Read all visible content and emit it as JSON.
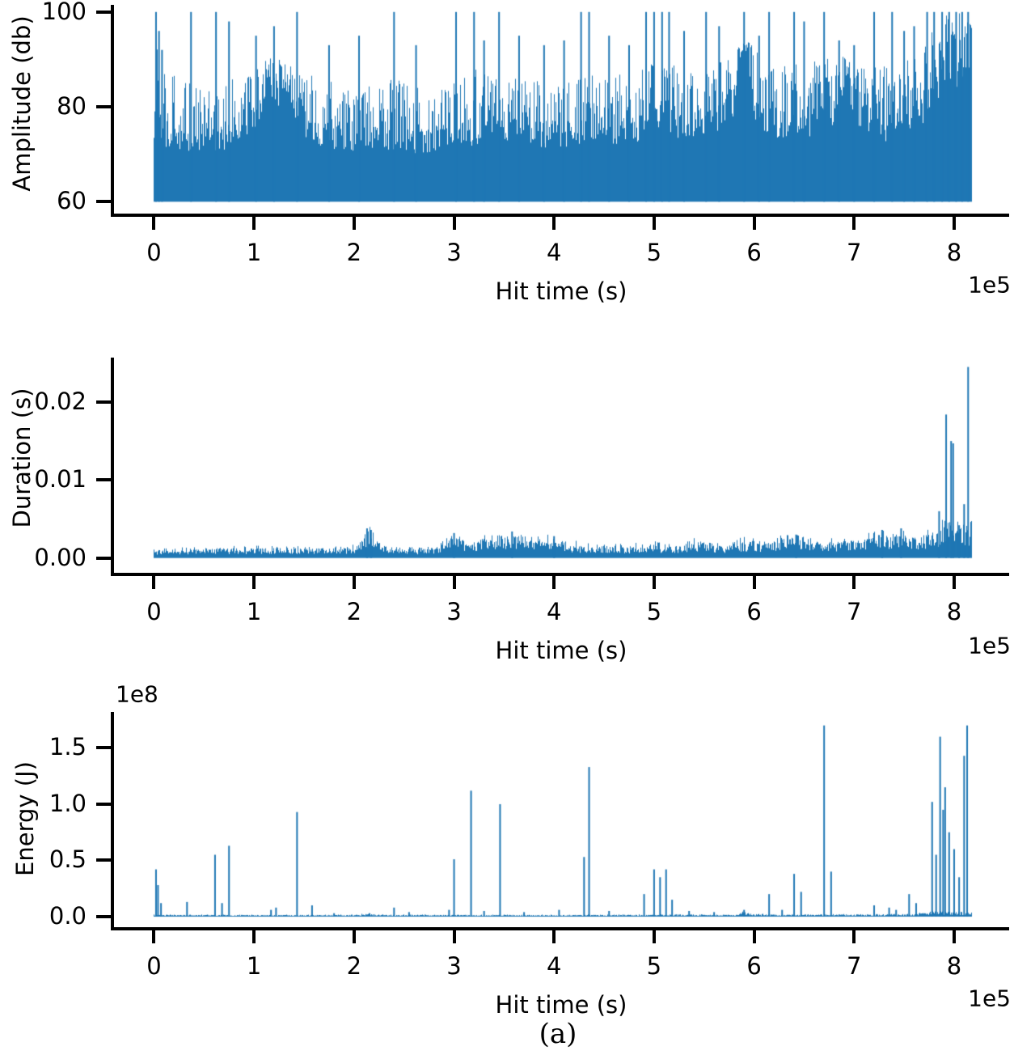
{
  "figure": {
    "caption": "(a)",
    "background": "#ffffff",
    "series_color": "#1f77b4",
    "axis_color": "#000000"
  },
  "chart_data": [
    {
      "type": "line",
      "mark": "vertical-spike-train",
      "title": "",
      "ylabel": "Amplitude (db)",
      "xlabel": "Hit time (s)",
      "x_offset_label": "1e5",
      "x_unit": "1e5 s",
      "y_unit": "db",
      "xlim": [
        -0.4,
        8.55
      ],
      "ylim": [
        57.5,
        101.5
      ],
      "xticks": [
        0,
        1,
        2,
        3,
        4,
        5,
        6,
        7,
        8
      ],
      "xtick_labels": [
        "0",
        "1",
        "2",
        "3",
        "4",
        "5",
        "6",
        "7",
        "8"
      ],
      "yticks": [
        100,
        80,
        60
      ],
      "ytick_labels": [
        "100",
        "80",
        "60"
      ],
      "grid": false,
      "baseline": 60,
      "x_data_range": [
        0,
        8.17
      ],
      "dense_envelope": [
        [
          0,
          78
        ],
        [
          0.1,
          76
        ],
        [
          0.3,
          75
        ],
        [
          0.5,
          74
        ],
        [
          0.7,
          75
        ],
        [
          0.9,
          78
        ],
        [
          1.05,
          83
        ],
        [
          1.2,
          86
        ],
        [
          1.35,
          83
        ],
        [
          1.5,
          78
        ],
        [
          1.7,
          76
        ],
        [
          2.0,
          74
        ],
        [
          2.3,
          75
        ],
        [
          2.6,
          74
        ],
        [
          2.9,
          75
        ],
        [
          3.1,
          76
        ],
        [
          3.4,
          77
        ],
        [
          3.7,
          76
        ],
        [
          4.0,
          75
        ],
        [
          4.3,
          76
        ],
        [
          4.6,
          75
        ],
        [
          4.9,
          77
        ],
        [
          5.1,
          80
        ],
        [
          5.3,
          78
        ],
        [
          5.5,
          77
        ],
        [
          5.7,
          79
        ],
        [
          5.85,
          88
        ],
        [
          5.92,
          91
        ],
        [
          6.0,
          80
        ],
        [
          6.2,
          78
        ],
        [
          6.5,
          78
        ],
        [
          6.7,
          79
        ],
        [
          6.85,
          85
        ],
        [
          6.95,
          87
        ],
        [
          7.05,
          80
        ],
        [
          7.3,
          77
        ],
        [
          7.5,
          78
        ],
        [
          7.7,
          82
        ],
        [
          7.85,
          91
        ],
        [
          8.0,
          93
        ],
        [
          8.17,
          94
        ]
      ],
      "peak_envelope": [
        [
          0,
          93
        ],
        [
          0.2,
          87
        ],
        [
          0.5,
          84
        ],
        [
          0.8,
          86
        ],
        [
          1.05,
          89
        ],
        [
          1.2,
          91
        ],
        [
          1.4,
          88
        ],
        [
          1.7,
          86
        ],
        [
          2.0,
          84
        ],
        [
          2.4,
          86
        ],
        [
          2.8,
          84
        ],
        [
          3.2,
          88
        ],
        [
          3.6,
          86
        ],
        [
          4.0,
          85
        ],
        [
          4.4,
          87
        ],
        [
          4.8,
          87
        ],
        [
          5.1,
          91
        ],
        [
          5.4,
          88
        ],
        [
          5.7,
          90
        ],
        [
          5.92,
          94
        ],
        [
          6.2,
          89
        ],
        [
          6.5,
          89
        ],
        [
          6.85,
          91
        ],
        [
          7.1,
          88
        ],
        [
          7.4,
          89
        ],
        [
          7.7,
          94
        ],
        [
          7.9,
          100
        ],
        [
          8.17,
          100
        ]
      ],
      "peaks": [
        [
          0.02,
          100
        ],
        [
          0.05,
          96
        ],
        [
          0.08,
          92
        ],
        [
          0.37,
          100
        ],
        [
          0.62,
          100
        ],
        [
          0.75,
          98
        ],
        [
          1.02,
          95
        ],
        [
          1.2,
          97
        ],
        [
          1.43,
          100
        ],
        [
          1.75,
          93
        ],
        [
          2.05,
          95
        ],
        [
          2.4,
          100
        ],
        [
          2.62,
          93
        ],
        [
          3.02,
          100
        ],
        [
          3.2,
          100
        ],
        [
          3.3,
          94
        ],
        [
          3.45,
          100
        ],
        [
          3.65,
          95
        ],
        [
          3.9,
          93
        ],
        [
          4.1,
          94
        ],
        [
          4.27,
          100
        ],
        [
          4.35,
          100
        ],
        [
          4.55,
          95
        ],
        [
          4.75,
          93
        ],
        [
          4.92,
          100
        ],
        [
          5.0,
          100
        ],
        [
          5.08,
          100
        ],
        [
          5.15,
          100
        ],
        [
          5.3,
          96
        ],
        [
          5.52,
          100
        ],
        [
          5.65,
          97
        ],
        [
          5.9,
          100
        ],
        [
          6.05,
          95
        ],
        [
          6.15,
          100
        ],
        [
          6.4,
          100
        ],
        [
          6.5,
          98
        ],
        [
          6.7,
          100
        ],
        [
          6.85,
          94
        ],
        [
          7.0,
          93
        ],
        [
          7.2,
          100
        ],
        [
          7.38,
          100
        ],
        [
          7.5,
          96
        ],
        [
          7.6,
          97
        ],
        [
          7.73,
          100
        ],
        [
          7.8,
          100
        ],
        [
          7.88,
          100
        ],
        [
          7.95,
          100
        ],
        [
          8.02,
          100
        ],
        [
          8.08,
          100
        ],
        [
          8.14,
          100
        ]
      ]
    },
    {
      "type": "line",
      "mark": "vertical-spike-train",
      "title": "",
      "ylabel": "Duration (s)",
      "xlabel": "Hit time (s)",
      "x_offset_label": "1e5",
      "x_unit": "1e5 s",
      "y_unit": "s",
      "xlim": [
        -0.4,
        8.55
      ],
      "ylim": [
        -0.0019,
        0.0257
      ],
      "xticks": [
        0,
        1,
        2,
        3,
        4,
        5,
        6,
        7,
        8
      ],
      "xtick_labels": [
        "0",
        "1",
        "2",
        "3",
        "4",
        "5",
        "6",
        "7",
        "8"
      ],
      "yticks": [
        0.02,
        0.01,
        0.0
      ],
      "ytick_labels": [
        "0.02",
        "0.01",
        "0.00"
      ],
      "grid": false,
      "baseline": 0,
      "x_data_range": [
        0,
        8.17
      ],
      "envelope": [
        [
          0,
          0.001
        ],
        [
          0.5,
          0.0012
        ],
        [
          1.0,
          0.0013
        ],
        [
          1.5,
          0.0013
        ],
        [
          1.9,
          0.0012
        ],
        [
          2.05,
          0.0018
        ],
        [
          2.15,
          0.0035
        ],
        [
          2.25,
          0.002
        ],
        [
          2.4,
          0.0012
        ],
        [
          2.8,
          0.0012
        ],
        [
          3.0,
          0.0028
        ],
        [
          3.15,
          0.0018
        ],
        [
          3.3,
          0.0026
        ],
        [
          3.45,
          0.0024
        ],
        [
          3.6,
          0.003
        ],
        [
          3.75,
          0.0022
        ],
        [
          3.95,
          0.0025
        ],
        [
          4.1,
          0.002
        ],
        [
          4.4,
          0.0014
        ],
        [
          4.7,
          0.0015
        ],
        [
          5.0,
          0.0018
        ],
        [
          5.2,
          0.0015
        ],
        [
          5.45,
          0.0022
        ],
        [
          5.7,
          0.0016
        ],
        [
          5.9,
          0.0022
        ],
        [
          6.1,
          0.0018
        ],
        [
          6.4,
          0.0028
        ],
        [
          6.6,
          0.002
        ],
        [
          6.85,
          0.0022
        ],
        [
          7.1,
          0.0024
        ],
        [
          7.25,
          0.003
        ],
        [
          7.45,
          0.0032
        ],
        [
          7.6,
          0.0026
        ],
        [
          7.8,
          0.0035
        ],
        [
          7.95,
          0.0045
        ],
        [
          8.05,
          0.0045
        ],
        [
          8.17,
          0.004
        ]
      ],
      "peaks": [
        [
          2.13,
          0.0038
        ],
        [
          2.17,
          0.0036
        ],
        [
          3.0,
          0.0032
        ],
        [
          3.58,
          0.0034
        ],
        [
          4.0,
          0.0028
        ],
        [
          6.42,
          0.003
        ],
        [
          7.28,
          0.0036
        ],
        [
          7.47,
          0.0038
        ],
        [
          7.85,
          0.006
        ],
        [
          7.92,
          0.0184
        ],
        [
          7.97,
          0.015
        ],
        [
          7.99,
          0.0147
        ],
        [
          8.05,
          0.0042
        ],
        [
          8.1,
          0.0069
        ],
        [
          8.14,
          0.0245
        ]
      ]
    },
    {
      "type": "line",
      "mark": "vertical-spike-train",
      "title": "",
      "ylabel": "Energy (J)",
      "xlabel": "Hit time (s)",
      "x_offset_label": "1e5",
      "y_offset_label": "1e8",
      "x_unit": "1e5 s",
      "y_unit": "1e8 J",
      "xlim": [
        -0.4,
        8.55
      ],
      "ylim": [
        -0.094,
        1.82
      ],
      "xticks": [
        0,
        1,
        2,
        3,
        4,
        5,
        6,
        7,
        8
      ],
      "xtick_labels": [
        "0",
        "1",
        "2",
        "3",
        "4",
        "5",
        "6",
        "7",
        "8"
      ],
      "yticks": [
        1.5,
        1.0,
        0.5,
        0.0
      ],
      "ytick_labels": [
        "1.5",
        "1.0",
        "0.5",
        "0.0"
      ],
      "grid": false,
      "baseline": 0,
      "x_data_range": [
        0,
        8.17
      ],
      "envelope": [
        [
          0,
          0.015
        ],
        [
          2.0,
          0.015
        ],
        [
          2.15,
          0.025
        ],
        [
          2.3,
          0.015
        ],
        [
          4.0,
          0.015
        ],
        [
          5.8,
          0.018
        ],
        [
          5.88,
          0.045
        ],
        [
          5.95,
          0.022
        ],
        [
          6.3,
          0.018
        ],
        [
          7.6,
          0.02
        ],
        [
          7.8,
          0.05
        ],
        [
          8.0,
          0.04
        ],
        [
          8.17,
          0.03
        ]
      ],
      "peaks": [
        [
          0.02,
          0.42
        ],
        [
          0.04,
          0.28
        ],
        [
          0.07,
          0.12
        ],
        [
          0.33,
          0.13
        ],
        [
          0.61,
          0.55
        ],
        [
          0.68,
          0.12
        ],
        [
          0.75,
          0.63
        ],
        [
          1.17,
          0.06
        ],
        [
          1.22,
          0.08
        ],
        [
          1.43,
          0.93
        ],
        [
          1.58,
          0.1
        ],
        [
          1.8,
          0.03
        ],
        [
          2.4,
          0.08
        ],
        [
          2.55,
          0.04
        ],
        [
          2.95,
          0.06
        ],
        [
          3.0,
          0.51
        ],
        [
          3.17,
          1.12
        ],
        [
          3.3,
          0.05
        ],
        [
          3.46,
          1.0
        ],
        [
          3.7,
          0.04
        ],
        [
          4.05,
          0.06
        ],
        [
          4.3,
          0.53
        ],
        [
          4.35,
          1.33
        ],
        [
          4.55,
          0.05
        ],
        [
          4.9,
          0.2
        ],
        [
          5.0,
          0.42
        ],
        [
          5.06,
          0.35
        ],
        [
          5.12,
          0.42
        ],
        [
          5.18,
          0.15
        ],
        [
          5.35,
          0.05
        ],
        [
          5.6,
          0.04
        ],
        [
          5.9,
          0.06
        ],
        [
          6.15,
          0.2
        ],
        [
          6.28,
          0.06
        ],
        [
          6.4,
          0.38
        ],
        [
          6.47,
          0.22
        ],
        [
          6.7,
          1.7
        ],
        [
          6.77,
          0.4
        ],
        [
          7.2,
          0.1
        ],
        [
          7.35,
          0.08
        ],
        [
          7.42,
          0.06
        ],
        [
          7.55,
          0.2
        ],
        [
          7.62,
          0.12
        ],
        [
          7.78,
          1.02
        ],
        [
          7.82,
          0.55
        ],
        [
          7.86,
          1.6
        ],
        [
          7.89,
          0.95
        ],
        [
          7.91,
          1.15
        ],
        [
          7.95,
          0.75
        ],
        [
          8.0,
          0.6
        ],
        [
          8.05,
          0.35
        ],
        [
          8.1,
          1.43
        ],
        [
          8.13,
          1.7
        ]
      ]
    }
  ]
}
